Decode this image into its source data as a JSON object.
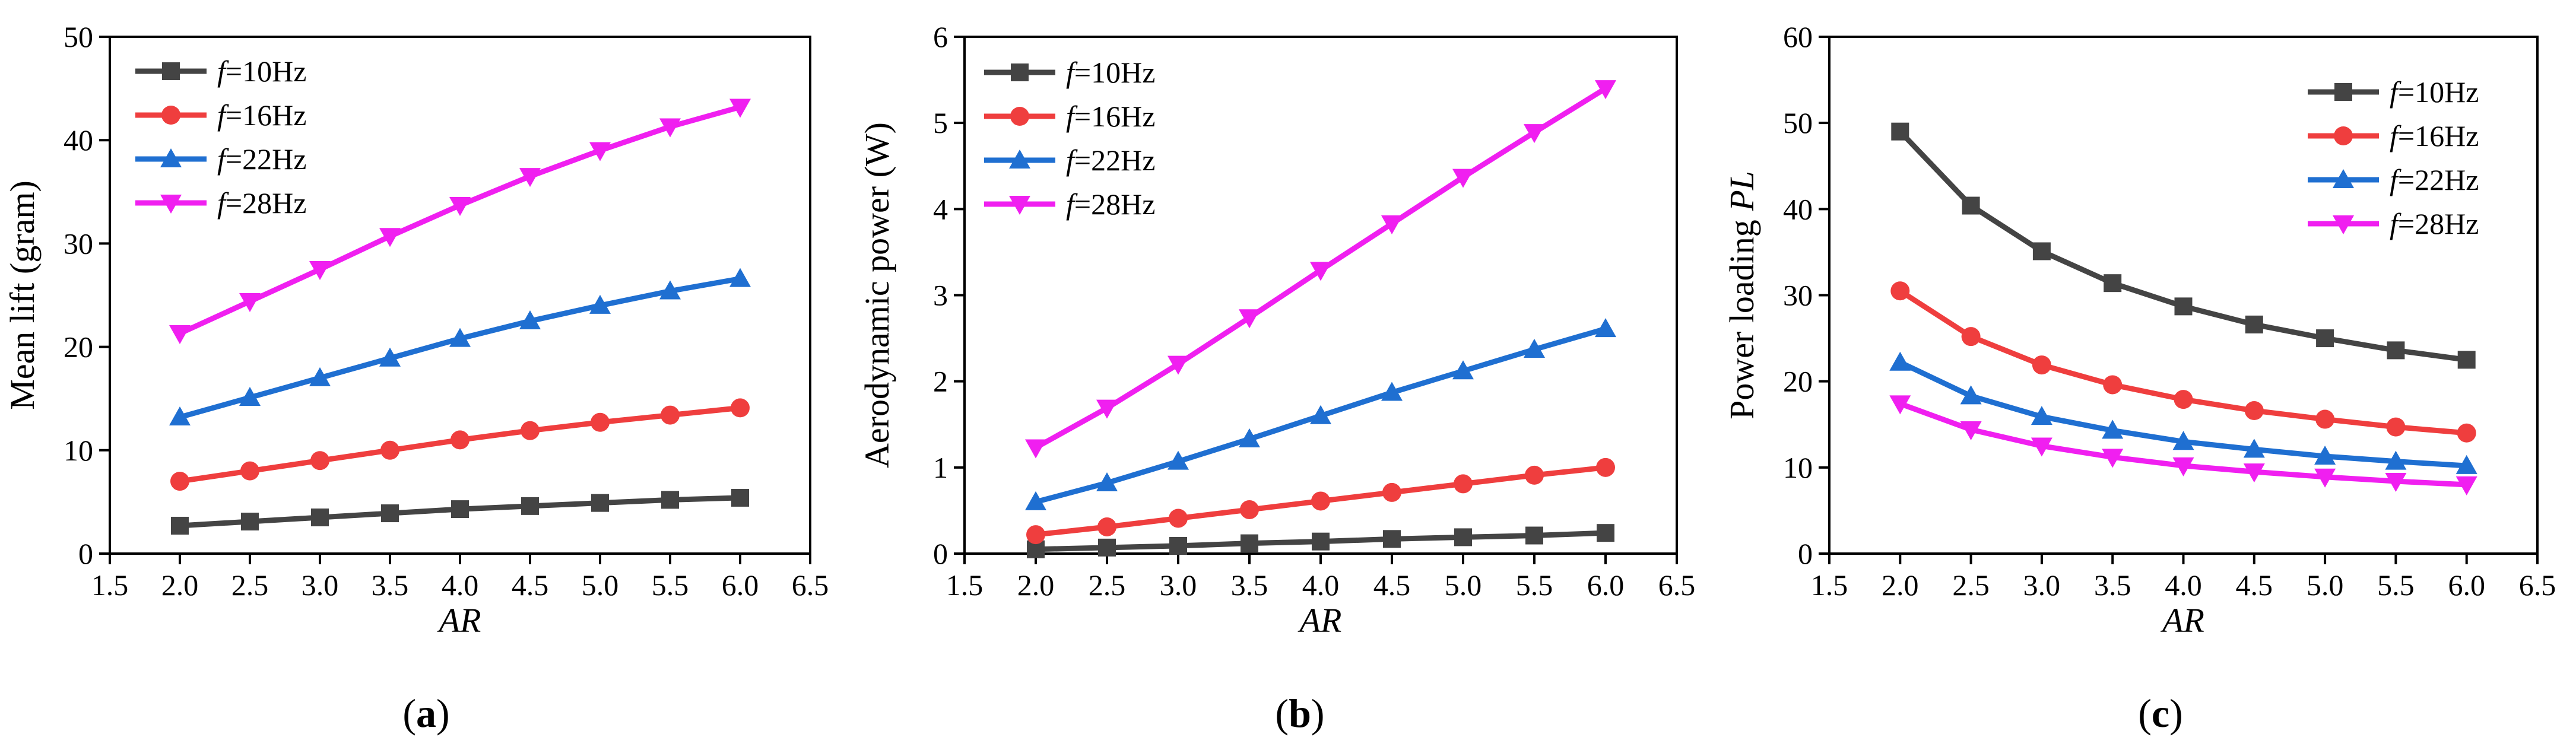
{
  "chart_data": [
    {
      "type": "line",
      "panel_label_prefix": "(",
      "panel_label_letter": "a",
      "panel_label_suffix": ")",
      "xlabel": "AR",
      "ylabel": "Mean lift (gram)",
      "xlim": [
        1.5,
        6.5
      ],
      "ylim": [
        0,
        50
      ],
      "xticks": [
        1.5,
        2.0,
        2.5,
        3.0,
        3.5,
        4.0,
        4.5,
        5.0,
        5.5,
        6.0,
        6.5
      ],
      "yticks": [
        0,
        10,
        20,
        30,
        40,
        50
      ],
      "legend_position": "top-left",
      "x": [
        2.0,
        2.5,
        3.0,
        3.5,
        4.0,
        4.5,
        5.0,
        5.5,
        6.0
      ],
      "series": [
        {
          "name_var": "f",
          "name_rest": "=10Hz",
          "color": "#444444",
          "marker": "square",
          "values": [
            2.7,
            3.1,
            3.5,
            3.9,
            4.3,
            4.6,
            4.9,
            5.2,
            5.4
          ]
        },
        {
          "name_var": "f",
          "name_rest": "=16Hz",
          "color": "#ef3e3e",
          "marker": "circle",
          "values": [
            7.0,
            8.0,
            9.0,
            10.0,
            11.0,
            11.9,
            12.7,
            13.4,
            14.1
          ]
        },
        {
          "name_var": "f",
          "name_rest": "=22Hz",
          "color": "#1f6fd1",
          "marker": "triangle-up",
          "values": [
            13.2,
            15.1,
            17.0,
            18.9,
            20.8,
            22.5,
            24.0,
            25.4,
            26.6
          ]
        },
        {
          "name_var": "f",
          "name_rest": "=28Hz",
          "color": "#f01ff0",
          "marker": "triangle-down",
          "values": [
            21.3,
            24.4,
            27.5,
            30.7,
            33.7,
            36.5,
            39.0,
            41.3,
            43.2
          ]
        }
      ]
    },
    {
      "type": "line",
      "panel_label_prefix": "(",
      "panel_label_letter": "b",
      "panel_label_suffix": ")",
      "xlabel": "AR",
      "ylabel": "Aerodynamic power (W)",
      "xlim": [
        1.5,
        6.5
      ],
      "ylim": [
        0,
        6
      ],
      "xticks": [
        1.5,
        2.0,
        2.5,
        3.0,
        3.5,
        4.0,
        4.5,
        5.0,
        5.5,
        6.0,
        6.5
      ],
      "yticks": [
        0,
        1,
        2,
        3,
        4,
        5,
        6
      ],
      "legend_position": "top-left",
      "x": [
        2.0,
        2.5,
        3.0,
        3.5,
        4.0,
        4.5,
        5.0,
        5.5,
        6.0
      ],
      "series": [
        {
          "name_var": "f",
          "name_rest": "=10Hz",
          "color": "#444444",
          "marker": "square",
          "values": [
            0.05,
            0.07,
            0.09,
            0.12,
            0.14,
            0.17,
            0.19,
            0.21,
            0.24
          ]
        },
        {
          "name_var": "f",
          "name_rest": "=16Hz",
          "color": "#ef3e3e",
          "marker": "circle",
          "values": [
            0.22,
            0.31,
            0.41,
            0.51,
            0.61,
            0.71,
            0.81,
            0.91,
            1.0
          ]
        },
        {
          "name_var": "f",
          "name_rest": "=22Hz",
          "color": "#1f6fd1",
          "marker": "triangle-up",
          "values": [
            0.6,
            0.82,
            1.07,
            1.33,
            1.6,
            1.87,
            2.12,
            2.37,
            2.61
          ]
        },
        {
          "name_var": "f",
          "name_rest": "=28Hz",
          "color": "#f01ff0",
          "marker": "triangle-down",
          "values": [
            1.23,
            1.69,
            2.2,
            2.74,
            3.29,
            3.83,
            4.37,
            4.89,
            5.4
          ]
        }
      ]
    },
    {
      "type": "line",
      "panel_label_prefix": "(",
      "panel_label_letter": "c",
      "panel_label_suffix": ")",
      "xlabel": "AR",
      "ylabel": "Power loading ",
      "ylabel_italic": "PL",
      "xlim": [
        1.5,
        6.5
      ],
      "ylim": [
        0,
        60
      ],
      "xticks": [
        1.5,
        2.0,
        2.5,
        3.0,
        3.5,
        4.0,
        4.5,
        5.0,
        5.5,
        6.0,
        6.5
      ],
      "yticks": [
        0,
        10,
        20,
        30,
        40,
        50,
        60
      ],
      "legend_position": "top-right",
      "x": [
        2.0,
        2.5,
        3.0,
        3.5,
        4.0,
        4.5,
        5.0,
        5.5,
        6.0
      ],
      "series": [
        {
          "name_var": "f",
          "name_rest": "=10Hz",
          "color": "#444444",
          "marker": "square",
          "values": [
            49.0,
            40.4,
            35.1,
            31.4,
            28.7,
            26.6,
            25.0,
            23.6,
            22.5
          ]
        },
        {
          "name_var": "f",
          "name_rest": "=16Hz",
          "color": "#ef3e3e",
          "marker": "circle",
          "values": [
            30.5,
            25.2,
            21.9,
            19.6,
            17.9,
            16.6,
            15.6,
            14.7,
            14.0
          ]
        },
        {
          "name_var": "f",
          "name_rest": "=22Hz",
          "color": "#1f6fd1",
          "marker": "triangle-up",
          "values": [
            22.2,
            18.3,
            15.9,
            14.3,
            13.0,
            12.1,
            11.3,
            10.7,
            10.2
          ]
        },
        {
          "name_var": "f",
          "name_rest": "=28Hz",
          "color": "#f01ff0",
          "marker": "triangle-down",
          "values": [
            17.4,
            14.4,
            12.5,
            11.2,
            10.2,
            9.5,
            8.9,
            8.4,
            8.0
          ]
        }
      ]
    }
  ]
}
